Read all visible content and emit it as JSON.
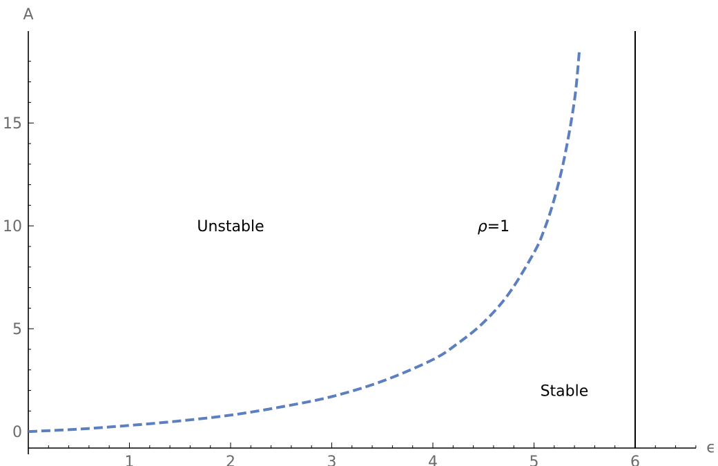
{
  "chart_data": {
    "type": "line",
    "xlabel": "ϵ",
    "ylabel": "A",
    "xlim": [
      0,
      6.6
    ],
    "ylim": [
      -0.8,
      19
    ],
    "x_ticks": [
      1,
      2,
      3,
      4,
      5,
      6
    ],
    "y_ticks": [
      0,
      5,
      10,
      15
    ],
    "grid": false,
    "series": [
      {
        "name": "ρ=1",
        "style": "dashed",
        "color": "#5b7fbf",
        "x": [
          0,
          0.5,
          1,
          1.5,
          2,
          2.5,
          3,
          3.5,
          4,
          4.25,
          4.5,
          4.75,
          5,
          5.1,
          5.2,
          5.3,
          5.4,
          5.45
        ],
        "y": [
          0,
          0.12,
          0.3,
          0.52,
          0.8,
          1.2,
          1.7,
          2.45,
          3.5,
          4.3,
          5.3,
          6.7,
          8.7,
          9.8,
          11.3,
          13.3,
          16.1,
          18.6
        ]
      }
    ],
    "vertical_lines": [
      {
        "x": 6,
        "color": "#000000"
      }
    ],
    "annotations": [
      {
        "text": "Unstable",
        "x": 2.0,
        "y": 10,
        "italic": false
      },
      {
        "text_italic": "ρ",
        "text_rest": "=1",
        "x": 4.6,
        "y": 10
      },
      {
        "text": "Stable",
        "x": 5.3,
        "y": 2.0,
        "italic": false
      }
    ]
  }
}
